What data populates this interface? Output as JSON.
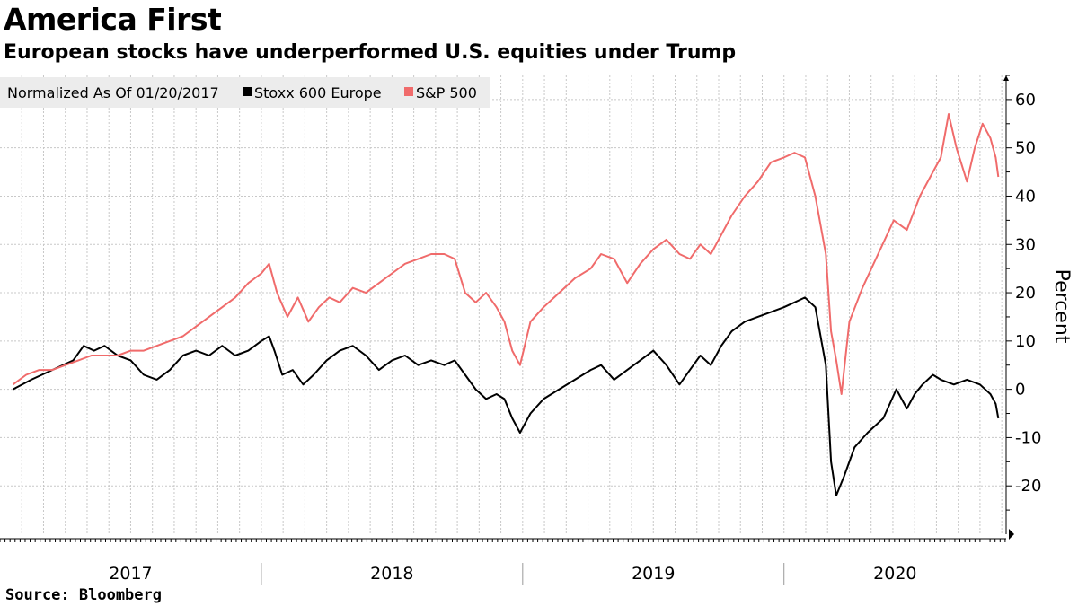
{
  "chart_data": {
    "type": "line",
    "title": "America First",
    "subtitle": "European stocks have underperformed U.S. equities under Trump",
    "ylabel": "Percent",
    "source": "Source: Bloomberg",
    "legend_prefix": "Normalized As Of 01/20/2017",
    "legend_placement": "top-left",
    "grid": true,
    "ylim": [
      -30,
      65
    ],
    "yticks": [
      -20,
      -10,
      0,
      10,
      20,
      30,
      40,
      50,
      60
    ],
    "yticklabels": [
      "-20",
      "-10",
      "0",
      "10",
      "20",
      "30",
      "40",
      "50",
      "60"
    ],
    "xlim": [
      2017.0,
      2020.85
    ],
    "year_labels": [
      "2017",
      "2018",
      "2019",
      "2020"
    ],
    "series": [
      {
        "name": "Stoxx 600 Europe",
        "color": "#000000",
        "points": [
          [
            2017.05,
            0
          ],
          [
            2017.12,
            2
          ],
          [
            2017.2,
            4
          ],
          [
            2017.28,
            6
          ],
          [
            2017.32,
            9
          ],
          [
            2017.36,
            8
          ],
          [
            2017.4,
            9
          ],
          [
            2017.45,
            7
          ],
          [
            2017.5,
            6
          ],
          [
            2017.55,
            3
          ],
          [
            2017.6,
            2
          ],
          [
            2017.65,
            4
          ],
          [
            2017.7,
            7
          ],
          [
            2017.75,
            8
          ],
          [
            2017.8,
            7
          ],
          [
            2017.85,
            9
          ],
          [
            2017.9,
            7
          ],
          [
            2017.95,
            8
          ],
          [
            2018.0,
            10
          ],
          [
            2018.03,
            11
          ],
          [
            2018.05,
            8
          ],
          [
            2018.08,
            3
          ],
          [
            2018.12,
            4
          ],
          [
            2018.16,
            1
          ],
          [
            2018.2,
            3
          ],
          [
            2018.25,
            6
          ],
          [
            2018.3,
            8
          ],
          [
            2018.35,
            9
          ],
          [
            2018.4,
            7
          ],
          [
            2018.45,
            4
          ],
          [
            2018.5,
            6
          ],
          [
            2018.55,
            7
          ],
          [
            2018.6,
            5
          ],
          [
            2018.65,
            6
          ],
          [
            2018.7,
            5
          ],
          [
            2018.74,
            6
          ],
          [
            2018.78,
            3
          ],
          [
            2018.82,
            0
          ],
          [
            2018.86,
            -2
          ],
          [
            2018.9,
            -1
          ],
          [
            2018.93,
            -2
          ],
          [
            2018.96,
            -6
          ],
          [
            2018.99,
            -9
          ],
          [
            2019.03,
            -5
          ],
          [
            2019.08,
            -2
          ],
          [
            2019.14,
            0
          ],
          [
            2019.2,
            2
          ],
          [
            2019.26,
            4
          ],
          [
            2019.3,
            5
          ],
          [
            2019.35,
            2
          ],
          [
            2019.4,
            4
          ],
          [
            2019.45,
            6
          ],
          [
            2019.5,
            8
          ],
          [
            2019.55,
            5
          ],
          [
            2019.6,
            1
          ],
          [
            2019.64,
            4
          ],
          [
            2019.68,
            7
          ],
          [
            2019.72,
            5
          ],
          [
            2019.76,
            9
          ],
          [
            2019.8,
            12
          ],
          [
            2019.85,
            14
          ],
          [
            2019.9,
            15
          ],
          [
            2019.95,
            16
          ],
          [
            2020.0,
            17
          ],
          [
            2020.04,
            18
          ],
          [
            2020.08,
            19
          ],
          [
            2020.12,
            17
          ],
          [
            2020.16,
            5
          ],
          [
            2020.18,
            -15
          ],
          [
            2020.2,
            -22
          ],
          [
            2020.23,
            -18
          ],
          [
            2020.27,
            -12
          ],
          [
            2020.32,
            -9
          ],
          [
            2020.38,
            -6
          ],
          [
            2020.43,
            0
          ],
          [
            2020.47,
            -4
          ],
          [
            2020.5,
            -1
          ],
          [
            2020.53,
            1
          ],
          [
            2020.57,
            3
          ],
          [
            2020.6,
            2
          ],
          [
            2020.65,
            1
          ],
          [
            2020.7,
            2
          ],
          [
            2020.75,
            1
          ],
          [
            2020.79,
            -1
          ],
          [
            2020.81,
            -3
          ],
          [
            2020.82,
            -6
          ]
        ]
      },
      {
        "name": "S&P 500",
        "color": "#f06b6b",
        "points": [
          [
            2017.05,
            1
          ],
          [
            2017.1,
            3
          ],
          [
            2017.15,
            4
          ],
          [
            2017.2,
            4
          ],
          [
            2017.25,
            5
          ],
          [
            2017.3,
            6
          ],
          [
            2017.35,
            7
          ],
          [
            2017.4,
            7
          ],
          [
            2017.45,
            7
          ],
          [
            2017.5,
            8
          ],
          [
            2017.55,
            8
          ],
          [
            2017.6,
            9
          ],
          [
            2017.65,
            10
          ],
          [
            2017.7,
            11
          ],
          [
            2017.75,
            13
          ],
          [
            2017.8,
            15
          ],
          [
            2017.85,
            17
          ],
          [
            2017.9,
            19
          ],
          [
            2017.95,
            22
          ],
          [
            2018.0,
            24
          ],
          [
            2018.03,
            26
          ],
          [
            2018.06,
            20
          ],
          [
            2018.1,
            15
          ],
          [
            2018.14,
            19
          ],
          [
            2018.18,
            14
          ],
          [
            2018.22,
            17
          ],
          [
            2018.26,
            19
          ],
          [
            2018.3,
            18
          ],
          [
            2018.35,
            21
          ],
          [
            2018.4,
            20
          ],
          [
            2018.45,
            22
          ],
          [
            2018.5,
            24
          ],
          [
            2018.55,
            26
          ],
          [
            2018.6,
            27
          ],
          [
            2018.65,
            28
          ],
          [
            2018.7,
            28
          ],
          [
            2018.74,
            27
          ],
          [
            2018.78,
            20
          ],
          [
            2018.82,
            18
          ],
          [
            2018.86,
            20
          ],
          [
            2018.9,
            17
          ],
          [
            2018.93,
            14
          ],
          [
            2018.96,
            8
          ],
          [
            2018.99,
            5
          ],
          [
            2019.03,
            14
          ],
          [
            2019.08,
            17
          ],
          [
            2019.14,
            20
          ],
          [
            2019.2,
            23
          ],
          [
            2019.26,
            25
          ],
          [
            2019.3,
            28
          ],
          [
            2019.35,
            27
          ],
          [
            2019.4,
            22
          ],
          [
            2019.45,
            26
          ],
          [
            2019.5,
            29
          ],
          [
            2019.55,
            31
          ],
          [
            2019.6,
            28
          ],
          [
            2019.64,
            27
          ],
          [
            2019.68,
            30
          ],
          [
            2019.72,
            28
          ],
          [
            2019.76,
            32
          ],
          [
            2019.8,
            36
          ],
          [
            2019.85,
            40
          ],
          [
            2019.9,
            43
          ],
          [
            2019.95,
            47
          ],
          [
            2020.0,
            48
          ],
          [
            2020.04,
            49
          ],
          [
            2020.08,
            48
          ],
          [
            2020.12,
            40
          ],
          [
            2020.16,
            28
          ],
          [
            2020.18,
            12
          ],
          [
            2020.2,
            6
          ],
          [
            2020.22,
            -1
          ],
          [
            2020.25,
            14
          ],
          [
            2020.3,
            21
          ],
          [
            2020.36,
            28
          ],
          [
            2020.42,
            35
          ],
          [
            2020.47,
            33
          ],
          [
            2020.52,
            40
          ],
          [
            2020.57,
            45
          ],
          [
            2020.6,
            48
          ],
          [
            2020.63,
            57
          ],
          [
            2020.66,
            50
          ],
          [
            2020.7,
            43
          ],
          [
            2020.73,
            50
          ],
          [
            2020.76,
            55
          ],
          [
            2020.79,
            52
          ],
          [
            2020.81,
            48
          ],
          [
            2020.82,
            44
          ]
        ]
      }
    ]
  }
}
